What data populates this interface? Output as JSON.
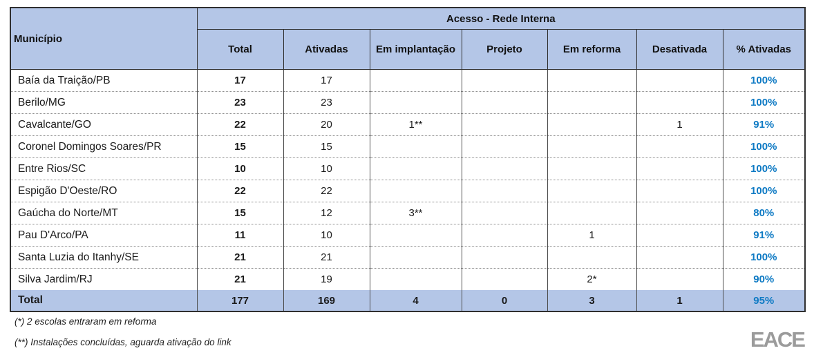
{
  "table": {
    "corner_header": "Município",
    "group_header": "Acesso - Rede Interna",
    "columns": [
      "Total",
      "Ativadas",
      "Em implantação",
      "Projeto",
      "Em reforma",
      "Desativada",
      "% Ativadas"
    ],
    "rows": [
      [
        "Baía da Traição/PB",
        "17",
        "17",
        "",
        "",
        "",
        "",
        "100%"
      ],
      [
        "Berilo/MG",
        "23",
        "23",
        "",
        "",
        "",
        "",
        "100%"
      ],
      [
        "Cavalcante/GO",
        "22",
        "20",
        "1**",
        "",
        "",
        "1",
        "91%"
      ],
      [
        "Coronel Domingos Soares/PR",
        "15",
        "15",
        "",
        "",
        "",
        "",
        "100%"
      ],
      [
        "Entre Rios/SC",
        "10",
        "10",
        "",
        "",
        "",
        "",
        "100%"
      ],
      [
        "Espigão D'Oeste/RO",
        "22",
        "22",
        "",
        "",
        "",
        "",
        "100%"
      ],
      [
        "Gaúcha do Norte/MT",
        "15",
        "12",
        "3**",
        "",
        "",
        "",
        "80%"
      ],
      [
        "Pau D'Arco/PA",
        "11",
        "10",
        "",
        "",
        "1",
        "",
        "91%"
      ],
      [
        "Santa Luzia do Itanhy/SE",
        "21",
        "21",
        "",
        "",
        "",
        "",
        "100%"
      ],
      [
        "Silva Jardim/RJ",
        "21",
        "19",
        "",
        "",
        "2*",
        "",
        "90%"
      ]
    ],
    "total_row": [
      "Total",
      "177",
      "169",
      "4",
      "0",
      "3",
      "1",
      "95%"
    ]
  },
  "footnotes": [
    "(*) 2 escolas entraram em reforma",
    "(**) Instalações concluídas, aguarda ativação do link"
  ],
  "logo_text": "EACE",
  "colors": {
    "header_fill": "#B4C6E7",
    "accent_blue": "#0E7AC4",
    "border_dark": "#2f2f2f",
    "logo_gray": "#9B9B9B"
  }
}
